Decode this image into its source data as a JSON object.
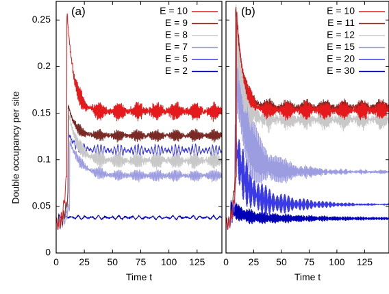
{
  "chart_data": {
    "type": "line",
    "ylabel": "Double occupancy per site",
    "ylim": [
      0,
      0.27
    ],
    "yticks": [
      0,
      0.05,
      0.1,
      0.15,
      0.2,
      0.25
    ],
    "xlim": [
      0,
      147
    ],
    "xticks": [
      0,
      25,
      50,
      75,
      100,
      125
    ],
    "panels": [
      {
        "label": "(a)",
        "xlabel": "Time t",
        "legend_placement": "top-right",
        "series": [
          {
            "legend": "E = 10",
            "E": 10,
            "color": "#e41a1c",
            "peak": 0.26,
            "t_peak": 9.5,
            "plateau": 0.152,
            "osc_amp": 0.009,
            "env_amp": 0.0,
            "env_decay": 60,
            "env_period": 10,
            "mean_decay": 6,
            "osc_period": 0.75
          },
          {
            "legend": "E = 9",
            "E": 9,
            "color": "#7a2a24",
            "peak": 0.16,
            "t_peak": 10.5,
            "plateau": 0.126,
            "osc_amp": 0.006,
            "env_amp": 0.0,
            "env_decay": 60,
            "env_period": 10,
            "mean_decay": 6,
            "osc_period": 0.85
          },
          {
            "legend": "E = 8",
            "E": 8,
            "color": "#c8c8c8",
            "peak": 0.15,
            "t_peak": 11,
            "plateau": 0.099,
            "osc_amp": 0.008,
            "env_amp": 0.0,
            "env_decay": 60,
            "env_period": 10,
            "mean_decay": 8,
            "osc_period": 0.95
          },
          {
            "legend": "E = 7",
            "E": 7,
            "color": "#9c9ce0",
            "peak": 0.12,
            "t_peak": 12,
            "plateau": 0.083,
            "osc_amp": 0.006,
            "env_amp": 0.0,
            "env_decay": 60,
            "env_period": 10,
            "mean_decay": 10,
            "osc_period": 1.1
          },
          {
            "legend": "E = 5",
            "E": 5,
            "color": "#3a3ae6",
            "peak": 0.13,
            "t_peak": 10.5,
            "plateau": 0.11,
            "osc_amp": 0.006,
            "env_amp": 0.0,
            "env_decay": 60,
            "env_period": 10,
            "mean_decay": 6,
            "osc_period": 3.0
          },
          {
            "legend": "E = 2",
            "E": 2,
            "color": "#0000b4",
            "peak": 0.04,
            "t_peak": 2,
            "plateau": 0.038,
            "osc_amp": 0.002,
            "env_amp": 0.0,
            "env_decay": 60,
            "env_period": 10,
            "mean_decay": 6,
            "osc_period": 6.0
          }
        ]
      },
      {
        "label": "(b)",
        "xlabel": "Time t",
        "legend_placement": "top-right",
        "series": [
          {
            "legend": "E = 10",
            "E": 10,
            "color": "#e41a1c",
            "peak": 0.26,
            "t_peak": 9.5,
            "plateau": 0.153,
            "osc_amp": 0.009,
            "env_amp": 0.0,
            "env_decay": 60,
            "env_period": 10,
            "mean_decay": 6,
            "osc_period": 0.75
          },
          {
            "legend": "E = 11",
            "E": 11,
            "color": "#7a2a24",
            "peak": 0.27,
            "t_peak": 8.5,
            "plateau": 0.156,
            "osc_amp": 0.008,
            "env_amp": 0.0,
            "env_decay": 60,
            "env_period": 10,
            "mean_decay": 6,
            "osc_period": 0.68
          },
          {
            "legend": "E = 12",
            "E": 12,
            "color": "#c8c8c8",
            "peak": 0.25,
            "t_peak": 8.5,
            "plateau": 0.143,
            "osc_amp": 0.01,
            "env_amp": 0.035,
            "env_decay": 14,
            "env_period": 1,
            "mean_decay": 6,
            "osc_period": 0.62
          },
          {
            "legend": "E = 15",
            "E": 15,
            "color": "#9c9ce0",
            "peak": 0.2,
            "t_peak": 9,
            "plateau": 0.087,
            "osc_amp": 0.002,
            "env_amp": 0.06,
            "env_decay": 28,
            "env_period": 26,
            "mean_decay": 10,
            "osc_period": 0.5
          },
          {
            "legend": "E = 20",
            "E": 20,
            "color": "#3a3ae6",
            "peak": 0.12,
            "t_peak": 8,
            "plateau": 0.052,
            "osc_amp": 0.001,
            "env_amp": 0.035,
            "env_decay": 40,
            "env_period": 18,
            "mean_decay": 10,
            "osc_period": 0.38
          },
          {
            "legend": "E = 30",
            "E": 30,
            "color": "#0000b4",
            "peak": 0.05,
            "t_peak": 4,
            "plateau": 0.037,
            "osc_amp": 0.001,
            "env_amp": 0.01,
            "env_decay": 60,
            "env_period": 11,
            "mean_decay": 10,
            "osc_period": 0.26
          }
        ]
      }
    ]
  }
}
